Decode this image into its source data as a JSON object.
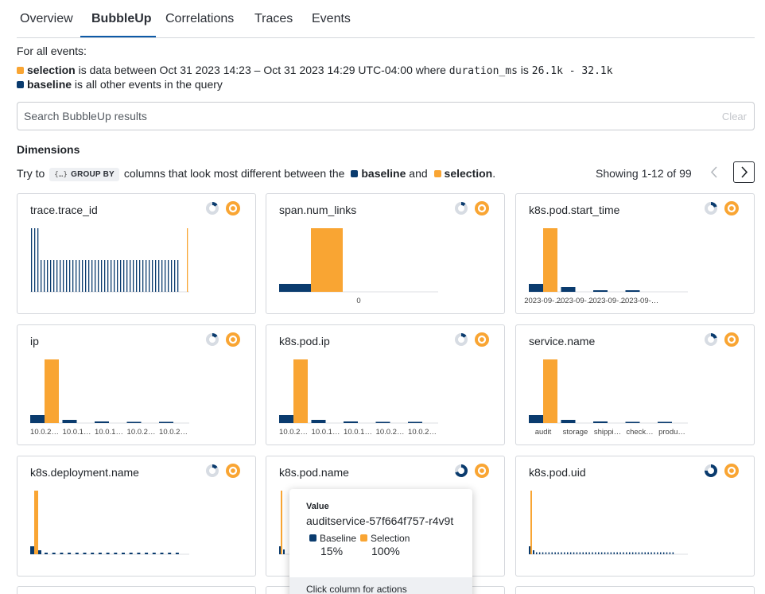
{
  "tabs": [
    {
      "label": "Overview"
    },
    {
      "label": "BubbleUp"
    },
    {
      "label": "Correlations"
    },
    {
      "label": "Traces"
    },
    {
      "label": "Events"
    }
  ],
  "active_tab": "BubbleUp",
  "info": {
    "heading": "For all events:",
    "selection_word": "selection",
    "selection_text": "is data between Oct 31 2023 14:23 – Oct 31 2023 14:29 UTC-04:00 where",
    "selection_field": "duration_ms",
    "selection_is": "is",
    "selection_range": "26.1k - 32.1k",
    "baseline_word": "baseline",
    "baseline_text": "is all other events in the query"
  },
  "search": {
    "placeholder": "Search BubbleUp results",
    "value": "",
    "clear_label": "Clear"
  },
  "dimensions_title": "Dimensions",
  "try_row": {
    "prefix": "Try to",
    "group_by": "GROUP BY",
    "middle": "columns that look most different between the",
    "baseline": "baseline",
    "and": "and",
    "selection": "selection",
    "suffix": "."
  },
  "pagination": {
    "showing": "Showing 1-12 of 99"
  },
  "colors": {
    "baseline": "#0a3b6e",
    "selection": "#f9a533",
    "ring_bg": "#d7dce3",
    "axis": "#dcdfe3"
  },
  "icons": {
    "prev": "chevron-left-icon",
    "next": "chevron-right-icon",
    "baseline_donut": "donut-icon",
    "selection_ring": "ring-icon"
  },
  "cards": [
    {
      "title": "trace.trace_id",
      "type": "dense",
      "baseline_share": 0.15
    },
    {
      "title": "span.num_links",
      "type": "bars",
      "baseline_share": 0.12,
      "labels": [
        "",
        "0",
        "",
        ""
      ]
    },
    {
      "title": "k8s.pod.start_time",
      "type": "bars",
      "baseline_share": 0.2,
      "labels": [
        "2023-09-…",
        "2023-09-…",
        "2023-09-…",
        "2023-09-…"
      ]
    },
    {
      "title": "ip",
      "type": "bars",
      "baseline_share": 0.15,
      "labels": [
        "10.0.2…",
        "10.0.1…",
        "10.0.1…",
        "10.0.2…",
        "10.0.2…"
      ]
    },
    {
      "title": "k8s.pod.ip",
      "type": "bars",
      "baseline_share": 0.15,
      "labels": [
        "10.0.2…",
        "10.0.1…",
        "10.0.1…",
        "10.0.2…",
        "10.0.2…"
      ]
    },
    {
      "title": "service.name",
      "type": "bars",
      "baseline_share": 0.2,
      "labels": [
        "audit",
        "storage",
        "shippi…",
        "check…",
        "produ…"
      ]
    },
    {
      "title": "k8s.deployment.name",
      "type": "sparse",
      "baseline_share": 0.15
    },
    {
      "title": "k8s.pod.name",
      "type": "sparse2",
      "baseline_share": 0.7
    },
    {
      "title": "k8s.pod.uid",
      "type": "sparse3",
      "baseline_share": 0.75
    }
  ],
  "tooltip": {
    "value_label": "Value",
    "value": "auditservice-57f664f757-r4v9t",
    "baseline_label": "Baseline",
    "selection_label": "Selection",
    "baseline_pct": "15%",
    "selection_pct": "100%",
    "footer": "Click column for actions"
  }
}
